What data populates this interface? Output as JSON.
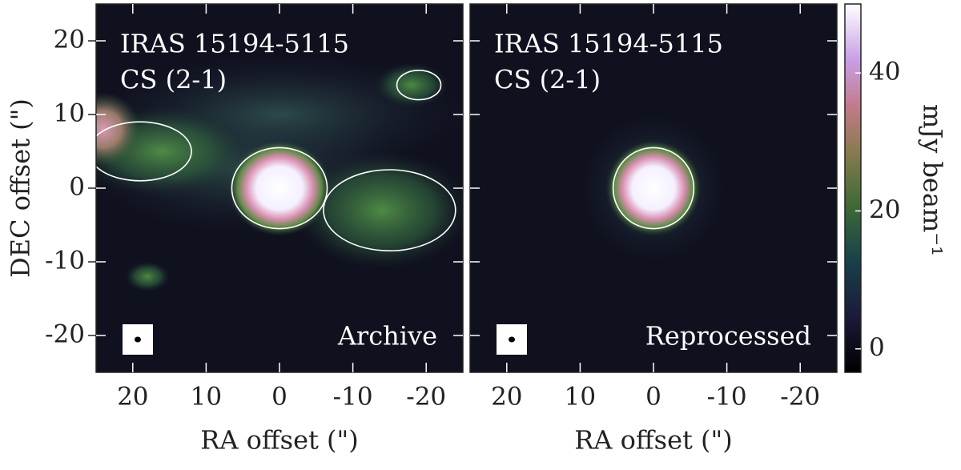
{
  "chart_data": [
    {
      "type": "image",
      "title": "IRAS 15194-5115",
      "subtitle": "CS (2-1)",
      "annotation": "Archive",
      "xlabel": "RA offset (\")",
      "ylabel": "DEC offset (\")",
      "xlim": [
        25,
        -25
      ],
      "ylim": [
        -25,
        25
      ],
      "xticks": [
        20,
        10,
        0,
        -10,
        -20
      ],
      "yticks": [
        -20,
        -10,
        0,
        10,
        20
      ]
    },
    {
      "type": "image",
      "title": "IRAS 15194-5115",
      "subtitle": "CS (2-1)",
      "annotation": "Reprocessed",
      "xlabel": "RA offset (\")",
      "xlim": [
        25,
        -25
      ],
      "ylim": [
        -25,
        25
      ],
      "xticks": [
        20,
        10,
        0,
        -10,
        -20
      ]
    },
    {
      "type": "colorbar",
      "label": "mJy beam⁻¹",
      "ylim": [
        -3.4,
        50
      ],
      "yticks": [
        0,
        20,
        40
      ]
    }
  ]
}
